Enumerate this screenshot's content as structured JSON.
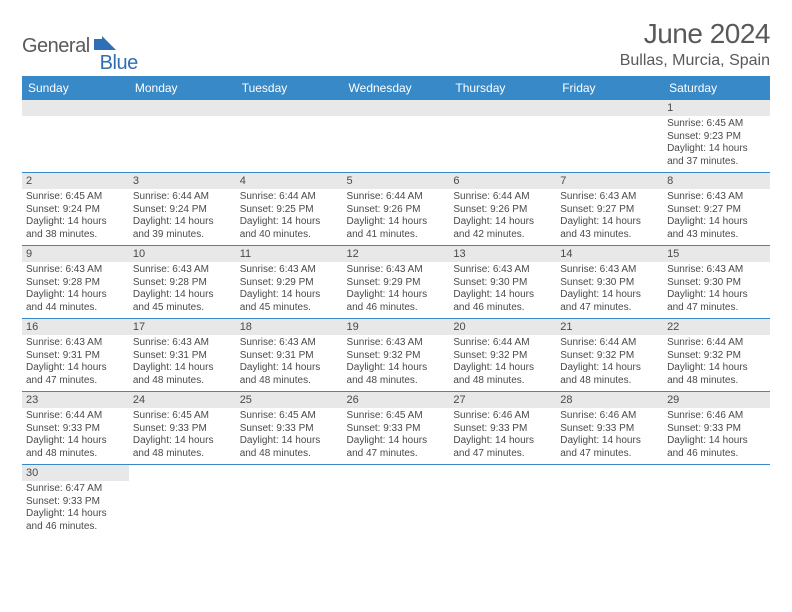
{
  "brand": {
    "text1": "General",
    "text2": "Blue",
    "icon_color": "#2e6fb5",
    "text1_color": "#5a5a5a"
  },
  "title": "June 2024",
  "location": "Bullas, Murcia, Spain",
  "colors": {
    "header_bg": "#3889c7",
    "header_fg": "#ffffff",
    "band_bg": "#e8e8e8",
    "rule": "#3889c7",
    "text": "#4a4a4a",
    "title_color": "#595959"
  },
  "day_headers": [
    "Sunday",
    "Monday",
    "Tuesday",
    "Wednesday",
    "Thursday",
    "Friday",
    "Saturday"
  ],
  "weeks": [
    [
      null,
      null,
      null,
      null,
      null,
      null,
      {
        "n": "1",
        "sr": "6:45 AM",
        "ss": "9:23 PM",
        "dl": "14 hours and 37 minutes."
      }
    ],
    [
      {
        "n": "2",
        "sr": "6:45 AM",
        "ss": "9:24 PM",
        "dl": "14 hours and 38 minutes."
      },
      {
        "n": "3",
        "sr": "6:44 AM",
        "ss": "9:24 PM",
        "dl": "14 hours and 39 minutes."
      },
      {
        "n": "4",
        "sr": "6:44 AM",
        "ss": "9:25 PM",
        "dl": "14 hours and 40 minutes."
      },
      {
        "n": "5",
        "sr": "6:44 AM",
        "ss": "9:26 PM",
        "dl": "14 hours and 41 minutes."
      },
      {
        "n": "6",
        "sr": "6:44 AM",
        "ss": "9:26 PM",
        "dl": "14 hours and 42 minutes."
      },
      {
        "n": "7",
        "sr": "6:43 AM",
        "ss": "9:27 PM",
        "dl": "14 hours and 43 minutes."
      },
      {
        "n": "8",
        "sr": "6:43 AM",
        "ss": "9:27 PM",
        "dl": "14 hours and 43 minutes."
      }
    ],
    [
      {
        "n": "9",
        "sr": "6:43 AM",
        "ss": "9:28 PM",
        "dl": "14 hours and 44 minutes."
      },
      {
        "n": "10",
        "sr": "6:43 AM",
        "ss": "9:28 PM",
        "dl": "14 hours and 45 minutes."
      },
      {
        "n": "11",
        "sr": "6:43 AM",
        "ss": "9:29 PM",
        "dl": "14 hours and 45 minutes."
      },
      {
        "n": "12",
        "sr": "6:43 AM",
        "ss": "9:29 PM",
        "dl": "14 hours and 46 minutes."
      },
      {
        "n": "13",
        "sr": "6:43 AM",
        "ss": "9:30 PM",
        "dl": "14 hours and 46 minutes."
      },
      {
        "n": "14",
        "sr": "6:43 AM",
        "ss": "9:30 PM",
        "dl": "14 hours and 47 minutes."
      },
      {
        "n": "15",
        "sr": "6:43 AM",
        "ss": "9:30 PM",
        "dl": "14 hours and 47 minutes."
      }
    ],
    [
      {
        "n": "16",
        "sr": "6:43 AM",
        "ss": "9:31 PM",
        "dl": "14 hours and 47 minutes."
      },
      {
        "n": "17",
        "sr": "6:43 AM",
        "ss": "9:31 PM",
        "dl": "14 hours and 48 minutes."
      },
      {
        "n": "18",
        "sr": "6:43 AM",
        "ss": "9:31 PM",
        "dl": "14 hours and 48 minutes."
      },
      {
        "n": "19",
        "sr": "6:43 AM",
        "ss": "9:32 PM",
        "dl": "14 hours and 48 minutes."
      },
      {
        "n": "20",
        "sr": "6:44 AM",
        "ss": "9:32 PM",
        "dl": "14 hours and 48 minutes."
      },
      {
        "n": "21",
        "sr": "6:44 AM",
        "ss": "9:32 PM",
        "dl": "14 hours and 48 minutes."
      },
      {
        "n": "22",
        "sr": "6:44 AM",
        "ss": "9:32 PM",
        "dl": "14 hours and 48 minutes."
      }
    ],
    [
      {
        "n": "23",
        "sr": "6:44 AM",
        "ss": "9:33 PM",
        "dl": "14 hours and 48 minutes."
      },
      {
        "n": "24",
        "sr": "6:45 AM",
        "ss": "9:33 PM",
        "dl": "14 hours and 48 minutes."
      },
      {
        "n": "25",
        "sr": "6:45 AM",
        "ss": "9:33 PM",
        "dl": "14 hours and 48 minutes."
      },
      {
        "n": "26",
        "sr": "6:45 AM",
        "ss": "9:33 PM",
        "dl": "14 hours and 47 minutes."
      },
      {
        "n": "27",
        "sr": "6:46 AM",
        "ss": "9:33 PM",
        "dl": "14 hours and 47 minutes."
      },
      {
        "n": "28",
        "sr": "6:46 AM",
        "ss": "9:33 PM",
        "dl": "14 hours and 47 minutes."
      },
      {
        "n": "29",
        "sr": "6:46 AM",
        "ss": "9:33 PM",
        "dl": "14 hours and 46 minutes."
      }
    ],
    [
      {
        "n": "30",
        "sr": "6:47 AM",
        "ss": "9:33 PM",
        "dl": "14 hours and 46 minutes."
      },
      null,
      null,
      null,
      null,
      null,
      null
    ]
  ],
  "labels": {
    "sunrise": "Sunrise:",
    "sunset": "Sunset:",
    "daylight": "Daylight:"
  }
}
